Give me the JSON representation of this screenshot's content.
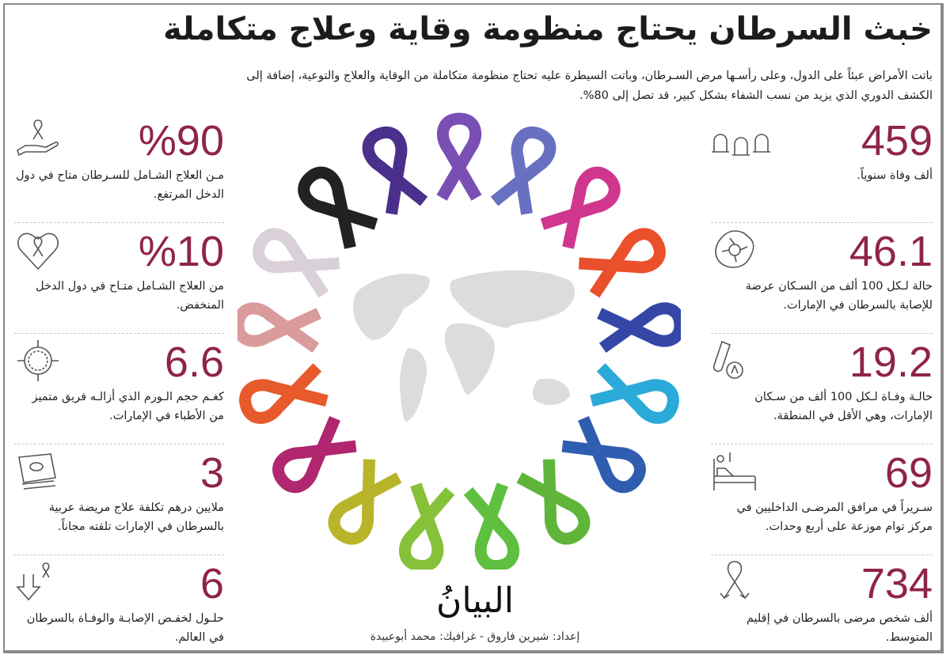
{
  "header": {
    "title": "خبث السرطان يحتاج منظومة وقاية وعلاج متكاملة",
    "intro": "باتت الأمراض عبئاً على الدول، وعلى رأسـها مرض السـرطان، وباتت السيطرة عليه تحتاج منظومة متكاملة من الوقاية والعلاج والتوعية، إضافة إلى الكشف الدوري الذي يزيد من نسب الشفاء بشكل كبير، قد تصل إلى 80%."
  },
  "accent_color": "#8f2447",
  "left_stats": [
    {
      "value": "%90",
      "text": "مـن العلاج الشـامل للسـرطان متاح في دول الدخل المرتفع.",
      "icon": "ribbon-hand-icon"
    },
    {
      "value": "%10",
      "text": "من العلاج الشـامل متـاح في دول الدخل المنخفض.",
      "icon": "ribbon-heart-icon"
    },
    {
      "value": "6.6",
      "text": "كغـم حجم الـورم الذي أزالـه فريق متميز من الأطباء في الإمارات.",
      "icon": "cell-target-icon"
    },
    {
      "value": "3",
      "text": "ملايين درهم تكلفة علاج مريضة عربية بالسرطان في الإمارات تلقته مجاناً.",
      "icon": "money-icon"
    },
    {
      "value": "6",
      "text": "حلـول لخفـض الإصابـة والوفـاة بالسرطان في العالم.",
      "icon": "down-arrow-ribbon-icon"
    }
  ],
  "right_stats": [
    {
      "value": "459",
      "text": "ألف وفاة سنوياً.",
      "icon": "tombstones-icon"
    },
    {
      "value": "46.1",
      "text": "حالة لـكل 100 ألف من السـكان عرضة للإصابة بالسرطان في الإمارات.",
      "icon": "tumor-cell-icon"
    },
    {
      "value": "19.2",
      "text": "حالـة وفـاة لـكل 100 ألف من سـكان الإمارات، وهي الأقل في المنطقة.",
      "icon": "test-tube-ribbon-icon"
    },
    {
      "value": "69",
      "text": "سـريراً في مرافق المرضـى الداخليين في مركز توام موزعة على أربع وحدات.",
      "icon": "hospital-bed-icon"
    },
    {
      "value": "734",
      "text": "ألف شخص مرضى بالسرطان في إقليم المتوسط.",
      "icon": "ribbon-icon"
    }
  ],
  "ribbon_colors": [
    "#7a4fb3",
    "#6870c2",
    "#d1368e",
    "#e9502b",
    "#3447a6",
    "#2aaad9",
    "#2f5db0",
    "#5fb53a",
    "#5fbf3e",
    "#86c13a",
    "#b9b52b",
    "#b0276f",
    "#e65a2b",
    "#d99b9b",
    "#d9d0d9",
    "#222222",
    "#4b2f8c"
  ],
  "logo": "البيانُ",
  "credit": "إعداد: شيرين فاروق - غرافيك: محمد أبوعبيدة"
}
